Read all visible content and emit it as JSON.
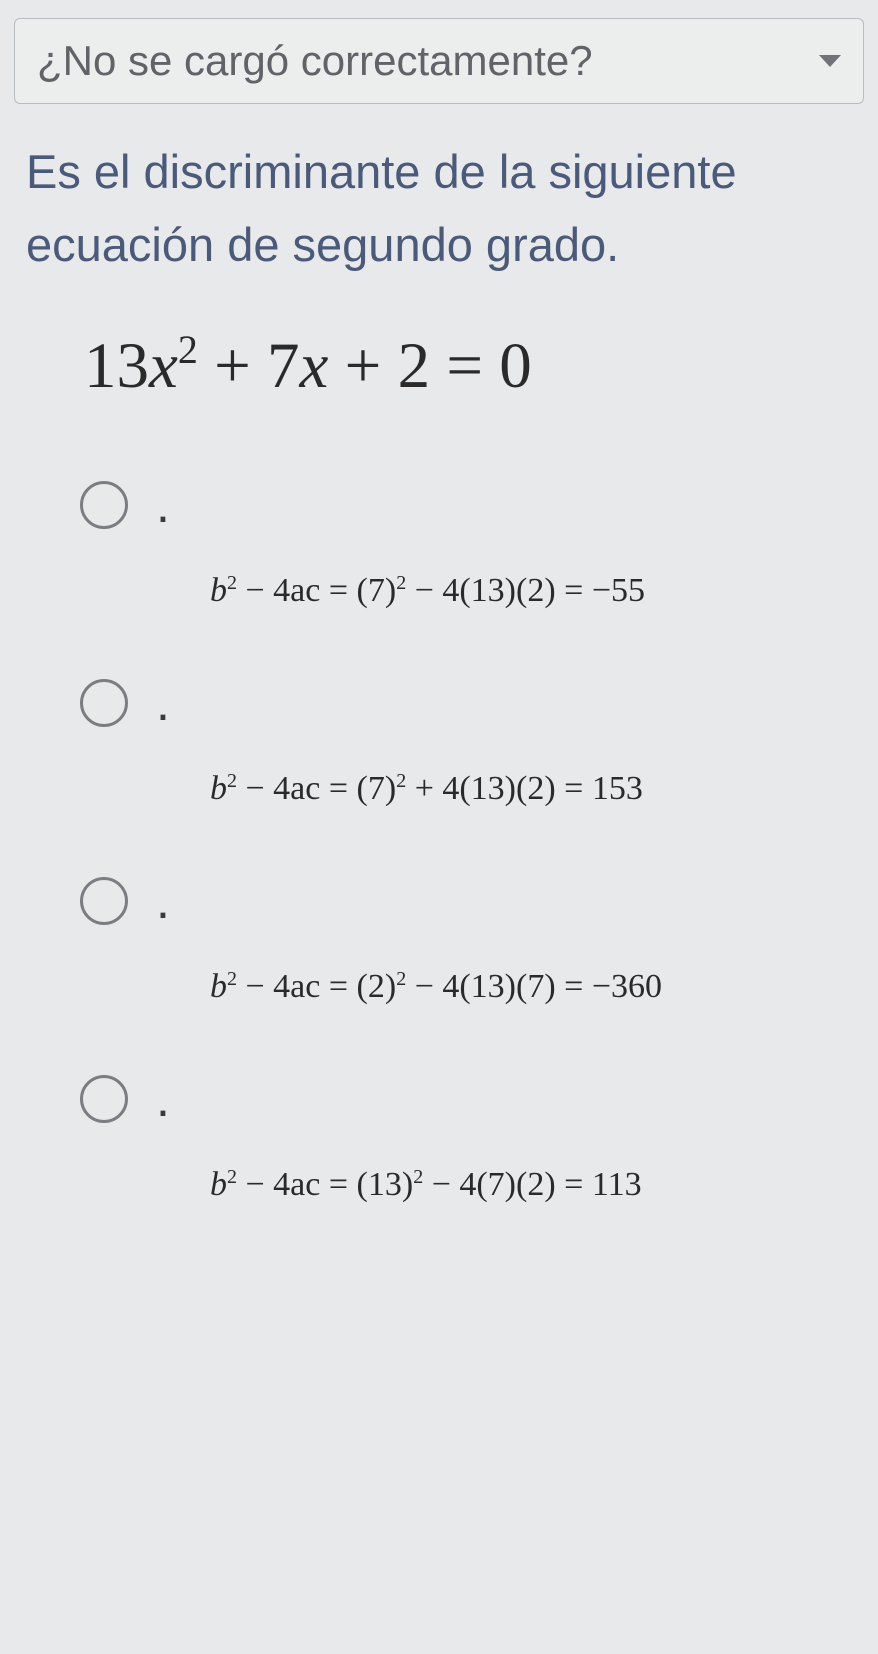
{
  "dropdown": {
    "label": "¿No se cargó correctamente?"
  },
  "question": {
    "text": "Es el discriminante de la siguiente ecuación de segundo grado."
  },
  "equation": {
    "a": "13",
    "b": "7",
    "c": "2",
    "rhs": "0"
  },
  "options": [
    {
      "lhs_b": "b",
      "lhs_rest": " − 4ac = (7)",
      "mid": " − 4(13)(2) = ",
      "result": "−55"
    },
    {
      "lhs_b": "b",
      "lhs_rest": " − 4ac = (7)",
      "mid": " + 4(13)(2) = ",
      "result": "153"
    },
    {
      "lhs_b": "b",
      "lhs_rest": " − 4ac = (2)",
      "mid": " − 4(13)(7) = ",
      "result": "−360"
    },
    {
      "lhs_b": "b",
      "lhs_rest": " − 4ac = (13)",
      "mid": " − 4(7)(2) = ",
      "result": "113"
    }
  ],
  "styling": {
    "background_color": "#e8e9ea",
    "dropdown_border_color": "#b8bdc2",
    "dropdown_text_color": "#606468",
    "question_text_color": "#4a5a7a",
    "formula_text_color": "#2a2a2a",
    "radio_border_color": "#7a7e82",
    "dropdown_fontsize": 42,
    "question_fontsize": 47,
    "equation_fontsize": 65,
    "formula_fontsize": 34
  }
}
